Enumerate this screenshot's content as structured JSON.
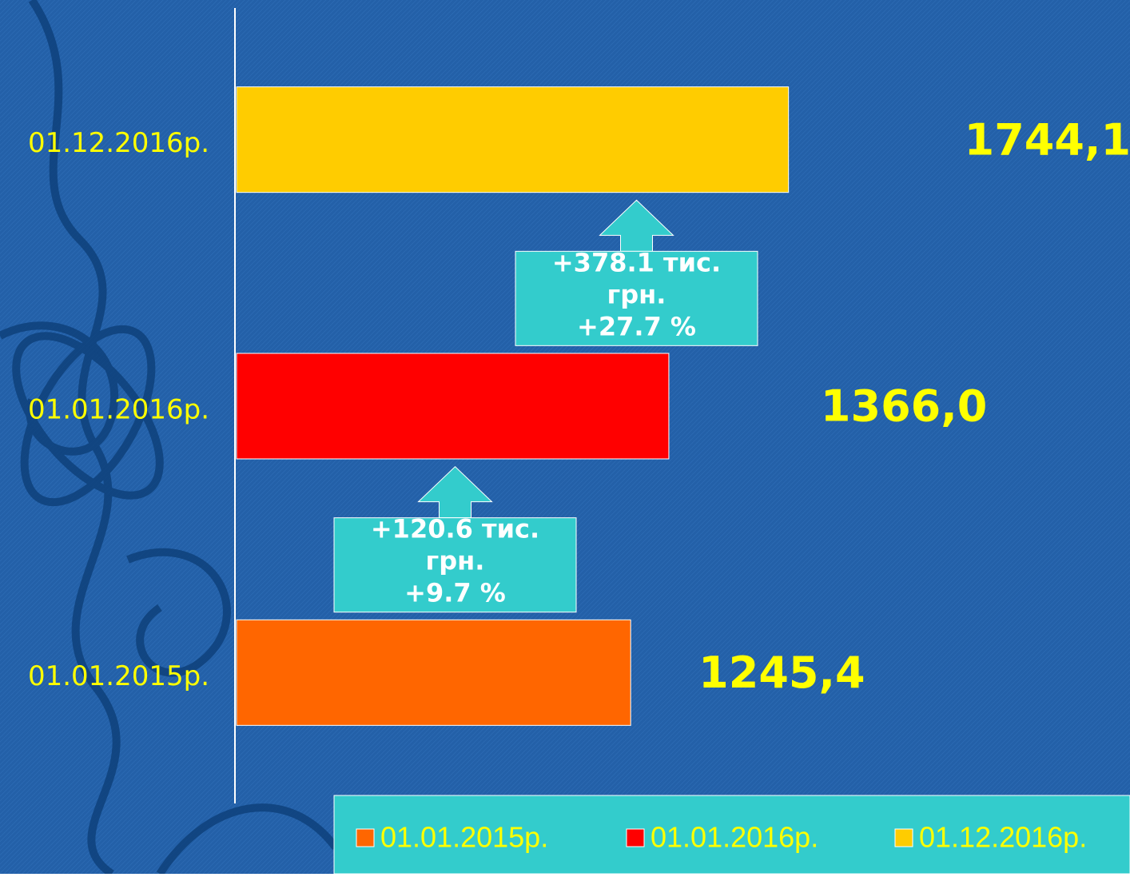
{
  "chart_data": {
    "type": "bar",
    "orientation": "horizontal",
    "categories": [
      "01.01.2015р.",
      "01.01.2016р.",
      "01.12.2016р."
    ],
    "values": [
      1245.4,
      1366.0,
      1744.1
    ],
    "value_labels": [
      "1245,4",
      "1366,0",
      "1744,1"
    ],
    "colors": [
      "#ff6600",
      "#ff0000",
      "#ffcc00"
    ],
    "xlim": [
      0,
      2500
    ],
    "legend": "bottom",
    "annotations": [
      {
        "lines": [
          "+120.6 тис.",
          "грн.",
          "+9.7 %"
        ]
      },
      {
        "lines": [
          "+378.1 тис.",
          "грн.",
          "+27.7 %"
        ]
      }
    ]
  }
}
